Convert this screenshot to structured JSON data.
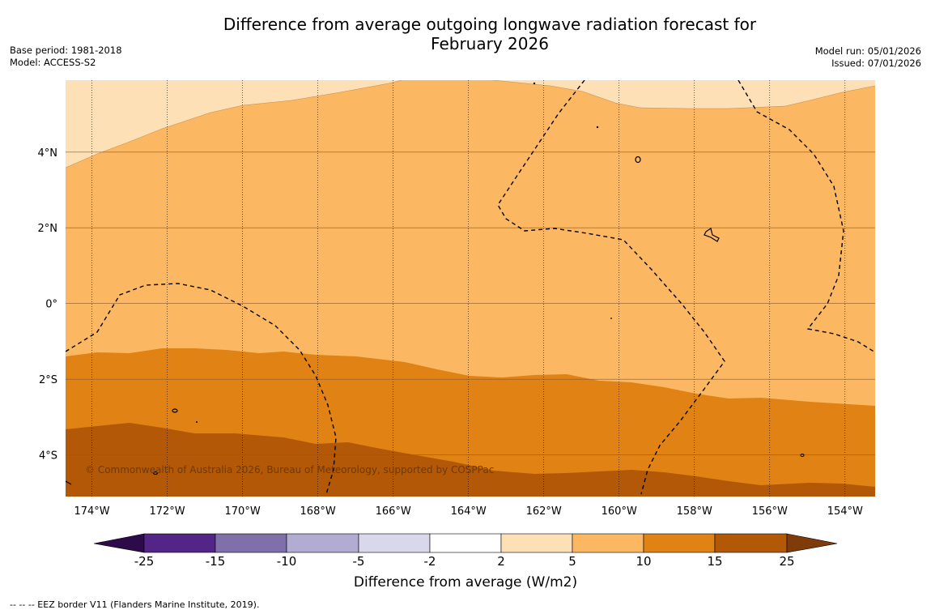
{
  "title_line1": "Difference from average outgoing longwave radiation forecast for",
  "title_line2": "February 2026",
  "base_period": "Base period: 1981-2018",
  "model": "Model: ACCESS-S2",
  "model_run": "Model run: 05/01/2026",
  "issued": "Issued: 07/01/2026",
  "copyright": "© Commonwealth of Australia 2026, Bureau of Meteorology, supported by COSPPac",
  "footer_note": "--  --  -- EEZ border V11 (Flanders Marine Institute, 2019).",
  "map": {
    "lon_range": [
      -174.7,
      -153.2
    ],
    "lat_range": [
      -5.1,
      5.9
    ],
    "lon_ticks": [
      "174°W",
      "172°W",
      "170°W",
      "168°W",
      "166°W",
      "164°W",
      "162°W",
      "160°W",
      "158°W",
      "156°W",
      "154°W"
    ],
    "lat_ticks": [
      "4°N",
      "2°N",
      "0°",
      "2°S",
      "4°S"
    ],
    "lon_tick_values": [
      -174,
      -172,
      -170,
      -168,
      -166,
      -164,
      -162,
      -160,
      -158,
      -156,
      -154
    ],
    "lat_tick_values": [
      4,
      2,
      0,
      -2,
      -4
    ]
  },
  "colorbar": {
    "title": "Difference from average (W/m2)",
    "ticks": [
      "-25",
      "-15",
      "-10",
      "-5",
      "-2",
      "2",
      "5",
      "10",
      "15",
      "25"
    ],
    "colors": {
      "neg25_below": "#2d0a4a",
      "neg25_neg15": "#532586",
      "neg15_neg10": "#7f70aa",
      "neg10_neg5": "#b2abd2",
      "neg5_neg2": "#d9d8eb",
      "neg2_2": "#ffffff",
      "p2_5": "#fee0b6",
      "p5_10": "#fbb762",
      "p10_15": "#e08214",
      "p15_25": "#b35806",
      "p25_above": "#7f3b08"
    }
  }
}
